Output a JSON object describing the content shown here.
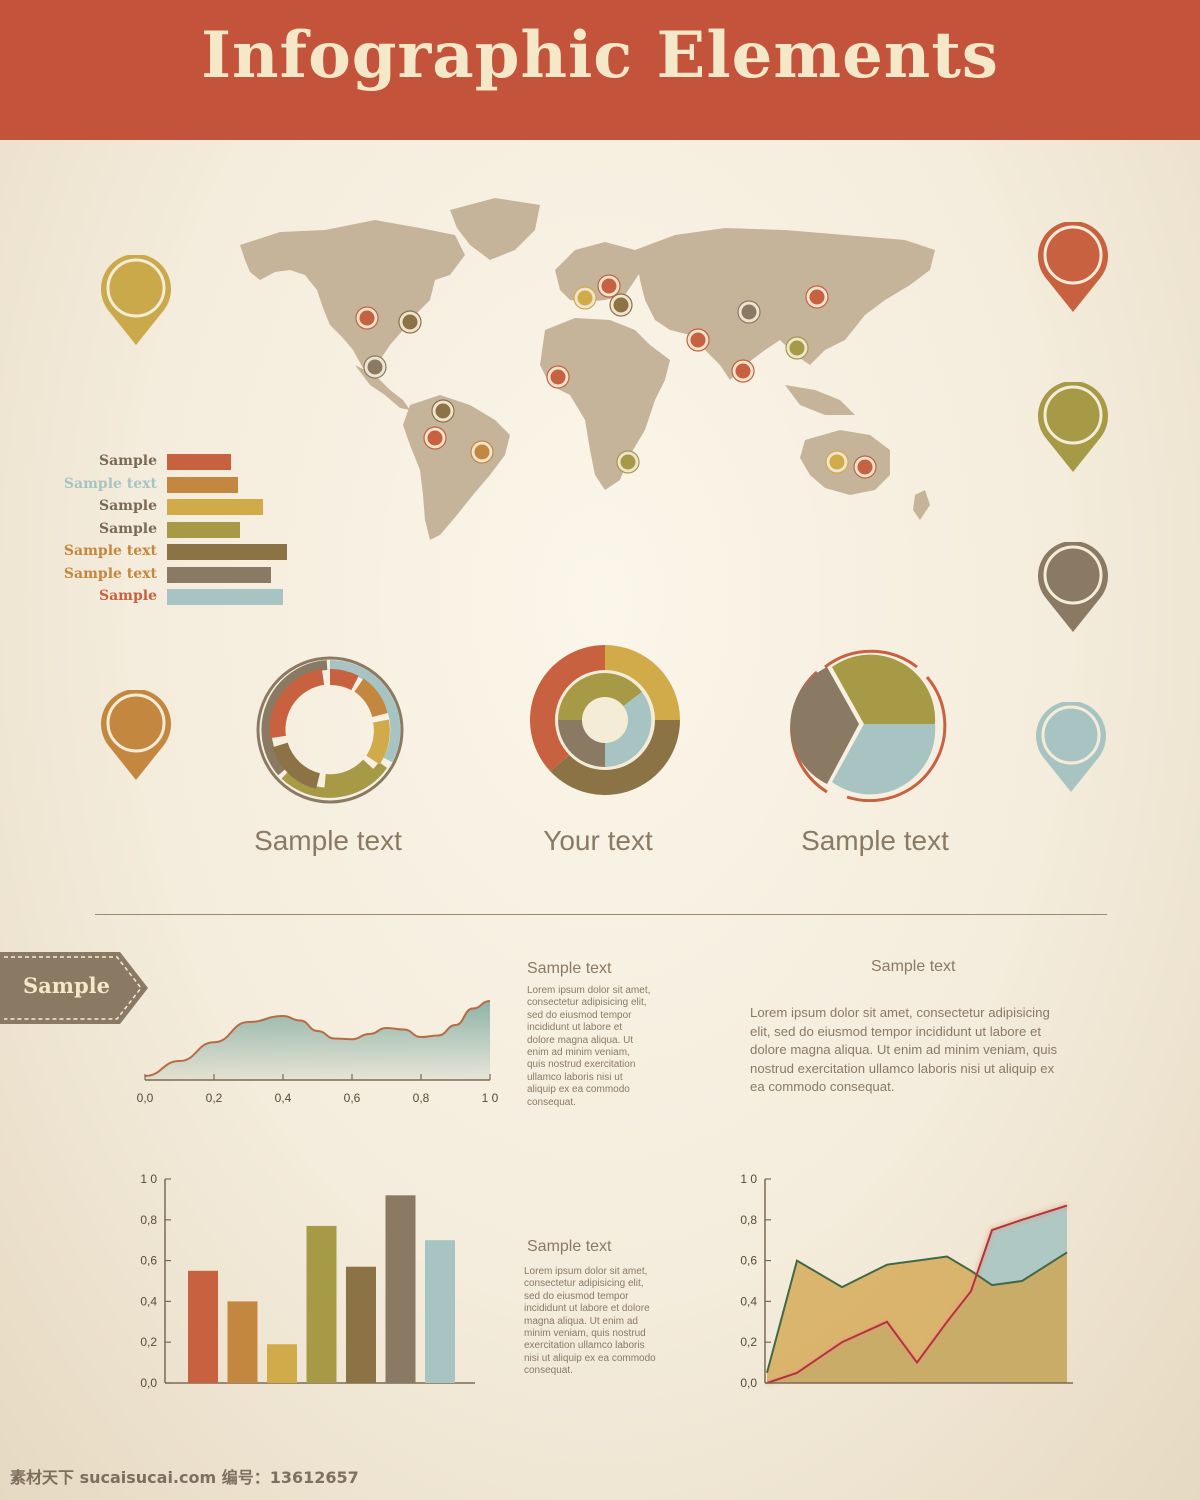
{
  "header": {
    "title": "Infographic Elements"
  },
  "colors": {
    "header_red": "#c4533c",
    "orange": "#c7613f",
    "ochre": "#c4873f",
    "mustard": "#d1aa4a",
    "olive": "#a69a47",
    "brown": "#8c7346",
    "taupe": "#8b7a63",
    "pale_blue": "#a8c4c2",
    "map": "#c5b49a"
  },
  "hbar_chart": {
    "items": [
      {
        "label": "Sample",
        "value": 0.53,
        "label_color": "#7a6a55",
        "bar_color": "#c7613f"
      },
      {
        "label": "Sample text",
        "value": 0.59,
        "label_color": "#a8c4c2",
        "bar_color": "#c4873f"
      },
      {
        "label": "Sample",
        "value": 0.8,
        "label_color": "#7a6a55",
        "bar_color": "#d1aa4a"
      },
      {
        "label": "Sample",
        "value": 0.61,
        "label_color": "#7a6a55",
        "bar_color": "#a69a47"
      },
      {
        "label": "Sample text",
        "value": 1.0,
        "label_color": "#c4873f",
        "bar_color": "#8c7346"
      },
      {
        "label": "Sample text",
        "value": 0.87,
        "label_color": "#c4873f",
        "bar_color": "#8b7a63"
      },
      {
        "label": "Sample",
        "value": 0.97,
        "label_color": "#c7613f",
        "bar_color": "#a8c4c2"
      }
    ]
  },
  "circle_captions": [
    "Sample text",
    "Your text",
    "Sample text"
  ],
  "sample_tag": "Sample",
  "text_blocks": {
    "block1": {
      "title": "Sample text",
      "body": "Lorem ipsum dolor sit amet,\nconsectetur adipisicing elit,\nsed do eiusmod tempor\nincididunt ut labore et\ndolore magna aliqua. Ut\nenim ad minim veniam,\nquis nostrud exercitation\nullamco laboris nisi ut\naliquip ex ea commodo\nconsequat."
    },
    "block2": {
      "title": "Sample text",
      "body": "Lorem ipsum dolor sit amet, consectetur adipisicing\nelit, sed do eiusmod tempor incididunt ut labore et\ndolore magna aliqua. Ut enim ad minim veniam, quis\nnostrud exercitation ullamco laboris nisi ut aliquip ex\nea commodo consequat."
    },
    "block3": {
      "title": "Sample text",
      "body": "Lorem ipsum dolor sit amet,\n consectetur adipisicing elit,\n sed do eiusmod tempor\n incididunt ut labore et dolore\n magna aliqua. Ut enim ad\n minim veniam, quis nostrud\n exercitation ullamco laboris\n nisi ut aliquip ex ea commodo\n consequat."
    }
  },
  "watermark": "素材天下 sucaisucai.com  编号：13612657",
  "chart_data": [
    {
      "type": "area",
      "x_ticks": [
        "0,0",
        "0,2",
        "0,4",
        "0,6",
        "0,8",
        "1 0"
      ],
      "xlim": [
        0,
        1
      ],
      "x": [
        0.0,
        0.1,
        0.2,
        0.3,
        0.4,
        0.45,
        0.5,
        0.55,
        0.6,
        0.65,
        0.7,
        0.75,
        0.8,
        0.85,
        0.9,
        0.95,
        1.0
      ],
      "values": [
        0.0,
        0.2,
        0.45,
        0.72,
        0.8,
        0.74,
        0.6,
        0.5,
        0.49,
        0.56,
        0.64,
        0.62,
        0.52,
        0.54,
        0.68,
        0.9,
        1.0
      ],
      "grid": false
    },
    {
      "type": "bar",
      "y_ticks": [
        "1 0",
        "0,8",
        "0,6",
        "0,4",
        "0,2",
        "0,0"
      ],
      "ylim": [
        0,
        1
      ],
      "values": [
        0.55,
        0.4,
        0.19,
        0.77,
        0.57,
        0.92,
        0.7
      ],
      "colors": [
        "#c7613f",
        "#c4873f",
        "#d1aa4a",
        "#a69a47",
        "#8c7346",
        "#8b7a63",
        "#a8c4c2"
      ],
      "grid": false
    },
    {
      "type": "area",
      "y_ticks": [
        "1 0",
        "0,8",
        "0,6",
        "0,4",
        "0,2",
        "0,0"
      ],
      "ylim": [
        0,
        1
      ],
      "x": [
        0.0,
        0.1,
        0.25,
        0.4,
        0.5,
        0.6,
        0.68,
        0.75,
        0.85,
        1.0
      ],
      "series": [
        {
          "values": [
            0.05,
            0.6,
            0.47,
            0.58,
            0.6,
            0.62,
            0.55,
            0.48,
            0.5,
            0.64
          ],
          "color": "#d1a34a",
          "line": "#3f6a45"
        },
        {
          "values": [
            0.0,
            0.05,
            0.2,
            0.3,
            0.1,
            0.3,
            0.45,
            0.75,
            0.8,
            0.87
          ],
          "color": "#a8c4c2",
          "line": "#b0343e"
        }
      ],
      "grid": false
    }
  ]
}
